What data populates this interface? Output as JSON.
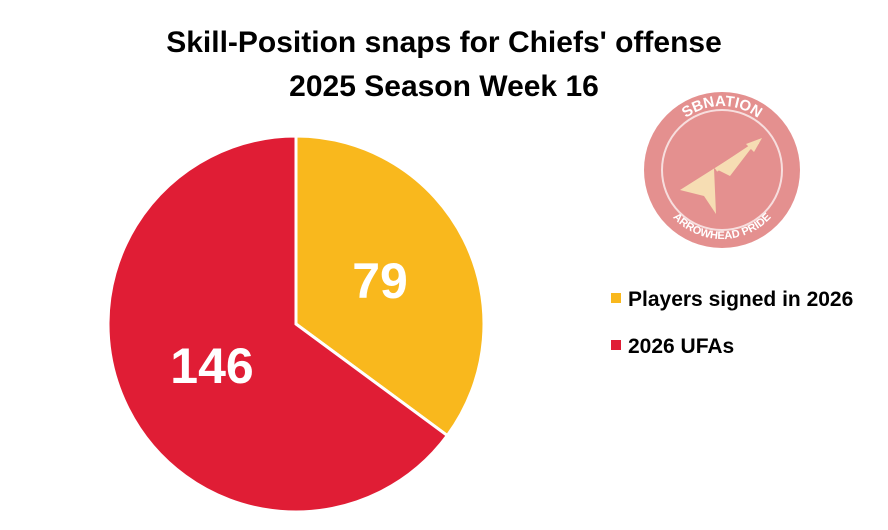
{
  "chart_data": {
    "type": "pie",
    "title": "Skill-Position snaps for Chiefs' offense",
    "subtitle": "2025 Season Week 16",
    "categories": [
      "Players signed in 2026",
      "2026 UFAs"
    ],
    "values": [
      79,
      146
    ],
    "colors": [
      "#f9b81d",
      "#e01d35"
    ],
    "legend_position": "right",
    "start_angle": "12 o'clock",
    "direction": "clockwise"
  },
  "logo": {
    "top_text": "SBNATION",
    "bottom_text": "ARROWHEAD PRIDE",
    "circle_color": "#e4908f",
    "arrow_color": "#f6ddb3"
  }
}
